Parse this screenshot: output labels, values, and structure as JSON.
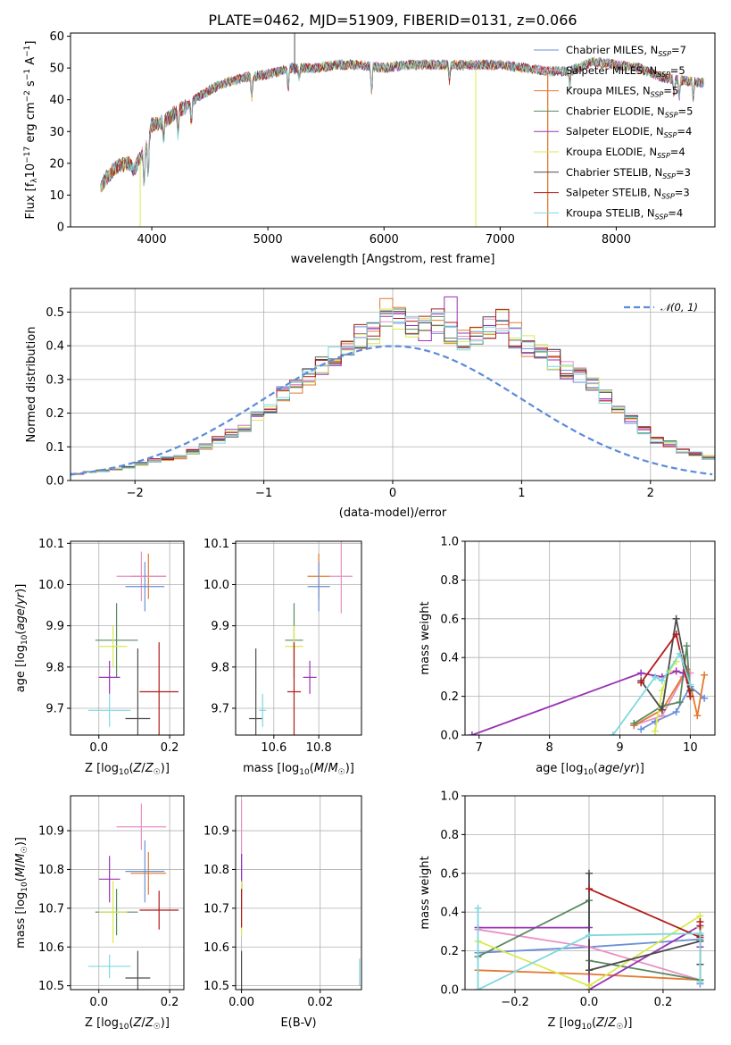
{
  "chart_data": [
    {
      "type": "line",
      "title": "PLATE=0462, MJD=51909, FIBERID=0131, z=0.066",
      "xlabel": "wavelength [Angstrom, rest frame]",
      "ylabel": "Flux [f_λ10^-17 erg cm^-2 s^-1 A^-1]",
      "xlim": [
        3300,
        8850
      ],
      "ylim": [
        0,
        61
      ],
      "xticks": [
        "4000",
        "5000",
        "6000",
        "7000",
        "8000"
      ],
      "yticks": [
        "0",
        "10",
        "20",
        "30",
        "40",
        "50",
        "60"
      ],
      "legend_position": "top-right",
      "spectrum_envelope": {
        "wavelength": [
          3550,
          3600,
          3700,
          3800,
          3850,
          3900,
          3950,
          4000,
          4100,
          4200,
          4300,
          4400,
          4500,
          4600,
          4800,
          5000,
          5200,
          5400,
          5600,
          5800,
          6000,
          6200,
          6400,
          6600,
          6800,
          7000,
          7200,
          7400,
          7600,
          7800,
          8000,
          8200,
          8400,
          8600,
          8800
        ],
        "flux": [
          12,
          15,
          19,
          20,
          18,
          22,
          25,
          32,
          33,
          36,
          38,
          41,
          43,
          45,
          47,
          48,
          50,
          50,
          51,
          51,
          50,
          51,
          51,
          51,
          51,
          51,
          50,
          49,
          49,
          52,
          51,
          50,
          47,
          46,
          45
        ]
      },
      "series": [
        {
          "name": "Chabrier MILES, N_SSP=7",
          "color": "#6b8fd6"
        },
        {
          "name": "Salpeter MILES, N_SSP=5",
          "color": "#e98fc5"
        },
        {
          "name": "Kroupa MILES, N_SSP=5",
          "color": "#e3792f"
        },
        {
          "name": "Chabrier ELODIE, N_SSP=5",
          "color": "#5a8a60"
        },
        {
          "name": "Salpeter ELODIE, N_SSP=4",
          "color": "#9932b5"
        },
        {
          "name": "Kroupa ELODIE, N_SSP=4",
          "color": "#d7ea4e"
        },
        {
          "name": "Chabrier STELIB, N_SSP=3",
          "color": "#4d4d4d"
        },
        {
          "name": "Salpeter STELIB, N_SSP=3",
          "color": "#b31b1b"
        },
        {
          "name": "Kroupa STELIB, N_SSP=4",
          "color": "#7fd8df"
        }
      ]
    },
    {
      "type": "bar",
      "xlabel": "(data-model)/error",
      "ylabel": "Normed distribution",
      "xlim": [
        -2.5,
        2.5
      ],
      "ylim": [
        0,
        0.57
      ],
      "xticks": [
        "−2",
        "−1",
        "0",
        "1",
        "2"
      ],
      "yticks": [
        "0.0",
        "0.1",
        "0.2",
        "0.3",
        "0.4",
        "0.5"
      ],
      "legend": "𝒩(0, 1)",
      "legend_position": "top-right",
      "bin_width": 0.1,
      "bin_start": -2.5,
      "histogram_base": [
        0.02,
        0.025,
        0.03,
        0.035,
        0.04,
        0.05,
        0.06,
        0.065,
        0.07,
        0.085,
        0.1,
        0.12,
        0.14,
        0.16,
        0.19,
        0.22,
        0.26,
        0.28,
        0.31,
        0.34,
        0.37,
        0.41,
        0.43,
        0.44,
        0.47,
        0.48,
        0.45,
        0.45,
        0.47,
        0.44,
        0.42,
        0.44,
        0.46,
        0.47,
        0.43,
        0.4,
        0.38,
        0.36,
        0.33,
        0.31,
        0.28,
        0.25,
        0.21,
        0.18,
        0.15,
        0.12,
        0.11,
        0.09,
        0.08,
        0.07,
        0.06,
        0.055,
        0.05,
        0.045,
        0.04,
        0.035,
        0.03,
        0.03,
        0.025,
        0.02,
        0.02,
        0.02
      ]
    },
    {
      "type": "scatter",
      "xlabel": "Z [log10(Z/Z☉)]",
      "ylabel": "age  [log10(age/yr)]",
      "xlim": [
        -0.08,
        0.24
      ],
      "ylim": [
        9.635,
        10.105
      ],
      "xticks": [
        "0.0",
        "0.2"
      ],
      "yticks": [
        "9.7",
        "9.8",
        "9.9",
        "10.0",
        "10.1"
      ],
      "points": [
        {
          "x": 0.14,
          "y": 10.02,
          "xerr": 0.05,
          "yerr": 0.055,
          "color": "#e3792f"
        },
        {
          "x": 0.12,
          "y": 10.02,
          "xerr": 0.07,
          "yerr": 0.06,
          "color": "#e98fc5"
        },
        {
          "x": 0.13,
          "y": 9.995,
          "xerr": 0.055,
          "yerr": 0.06,
          "color": "#6b8fd6"
        },
        {
          "x": 0.05,
          "y": 9.865,
          "xerr": 0.06,
          "yerr": 0.09,
          "color": "#5a8a60"
        },
        {
          "x": 0.04,
          "y": 9.85,
          "xerr": 0.04,
          "yerr": 0.05,
          "color": "#d7ea4e"
        },
        {
          "x": 0.03,
          "y": 9.775,
          "xerr": 0.03,
          "yerr": 0.04,
          "color": "#9932b5"
        },
        {
          "x": 0.17,
          "y": 9.74,
          "xerr": 0.055,
          "yerr": 0.12,
          "color": "#b31b1b"
        },
        {
          "x": 0.11,
          "y": 9.675,
          "xerr": 0.035,
          "yerr": 0.17,
          "color": "#4d4d4d"
        },
        {
          "x": 0.03,
          "y": 9.695,
          "xerr": 0.06,
          "yerr": 0.04,
          "color": "#7fd8df"
        }
      ]
    },
    {
      "type": "scatter",
      "xlabel": "mass [log10(M/M☉)]",
      "ylabel": "",
      "xlim": [
        10.43,
        10.99
      ],
      "ylim": [
        9.635,
        10.105
      ],
      "xticks": [
        "10.6",
        "10.8"
      ],
      "yticks": [
        "9.7",
        "9.8",
        "9.9",
        "10.0",
        "10.1"
      ],
      "points": [
        {
          "x": 10.8,
          "y": 10.02,
          "xerr": 0.05,
          "yerr": 0.055,
          "color": "#e3792f"
        },
        {
          "x": 10.9,
          "y": 10.02,
          "xerr": 0.05,
          "yerr": 0.09,
          "color": "#e98fc5"
        },
        {
          "x": 10.8,
          "y": 9.995,
          "xerr": 0.05,
          "yerr": 0.06,
          "color": "#6b8fd6"
        },
        {
          "x": 10.69,
          "y": 9.865,
          "xerr": 0.04,
          "yerr": 0.09,
          "color": "#5a8a60"
        },
        {
          "x": 10.69,
          "y": 9.85,
          "xerr": 0.04,
          "yerr": 0.05,
          "color": "#d7ea4e"
        },
        {
          "x": 10.76,
          "y": 9.775,
          "xerr": 0.03,
          "yerr": 0.04,
          "color": "#9932b5"
        },
        {
          "x": 10.69,
          "y": 9.74,
          "xerr": 0.03,
          "yerr": 0.12,
          "color": "#b31b1b"
        },
        {
          "x": 10.52,
          "y": 9.675,
          "xerr": 0.03,
          "yerr": 0.17,
          "color": "#4d4d4d"
        },
        {
          "x": 10.55,
          "y": 9.695,
          "xerr": 0.015,
          "yerr": 0.04,
          "color": "#7fd8df"
        }
      ]
    },
    {
      "type": "line",
      "xlabel": "age  [log10(age/yr)]",
      "ylabel": "mass weight",
      "xlim": [
        6.8,
        10.35
      ],
      "ylim": [
        0,
        1.0
      ],
      "xticks": [
        "7",
        "8",
        "9",
        "10"
      ],
      "yticks": [
        "0.0",
        "0.2",
        "0.4",
        "0.6",
        "0.8",
        "1.0"
      ],
      "series": [
        {
          "color": "#6b8fd6",
          "x": [
            9.3,
            9.5,
            9.8,
            10.0,
            10.2
          ],
          "y": [
            0.03,
            0.07,
            0.12,
            0.25,
            0.19
          ]
        },
        {
          "color": "#e98fc5",
          "x": [
            9.2,
            9.6,
            9.9,
            10.0
          ],
          "y": [
            0.05,
            0.1,
            0.3,
            0.32
          ]
        },
        {
          "color": "#e3792f",
          "x": [
            9.2,
            9.6,
            9.95,
            10.1,
            10.2
          ],
          "y": [
            0.05,
            0.13,
            0.34,
            0.1,
            0.31
          ]
        },
        {
          "color": "#5a8a60",
          "x": [
            9.2,
            9.6,
            9.85,
            9.95,
            10.0
          ],
          "y": [
            0.06,
            0.15,
            0.17,
            0.46,
            0.2
          ]
        },
        {
          "color": "#9932b5",
          "x": [
            6.9,
            9.3,
            9.6,
            9.8,
            9.9
          ],
          "y": [
            0.0,
            0.32,
            0.3,
            0.33,
            0.32
          ]
        },
        {
          "color": "#d7ea4e",
          "x": [
            9.5,
            9.6,
            9.7,
            9.8
          ],
          "y": [
            0.02,
            0.23,
            0.33,
            0.38
          ]
        },
        {
          "color": "#4d4d4d",
          "x": [
            9.3,
            9.6,
            9.8,
            10.0
          ],
          "y": [
            0.28,
            0.13,
            0.6,
            0.23
          ]
        },
        {
          "color": "#b31b1b",
          "x": [
            9.3,
            9.8,
            10.0
          ],
          "y": [
            0.27,
            0.52,
            0.2
          ]
        },
        {
          "color": "#7fd8df",
          "x": [
            8.9,
            9.5,
            9.6,
            9.85,
            10.0
          ],
          "y": [
            0.0,
            0.3,
            0.28,
            0.42,
            0.26
          ]
        }
      ]
    },
    {
      "type": "scatter",
      "xlabel": "Z [log10(Z/Z☉)]",
      "ylabel": "mass [log10(M/M☉)]",
      "xlim": [
        -0.08,
        0.24
      ],
      "ylim": [
        10.49,
        10.99
      ],
      "xticks": [
        "0.0",
        "0.2"
      ],
      "yticks": [
        "10.5",
        "10.6",
        "10.7",
        "10.8",
        "10.9"
      ],
      "points": [
        {
          "x": 0.12,
          "y": 10.91,
          "xerr": 0.07,
          "yerr": 0.06,
          "color": "#e98fc5"
        },
        {
          "x": 0.14,
          "y": 10.79,
          "xerr": 0.05,
          "yerr": 0.055,
          "color": "#e3792f"
        },
        {
          "x": 0.13,
          "y": 10.795,
          "xerr": 0.055,
          "yerr": 0.08,
          "color": "#6b8fd6"
        },
        {
          "x": 0.03,
          "y": 10.775,
          "xerr": 0.03,
          "yerr": 0.06,
          "color": "#9932b5"
        },
        {
          "x": 0.05,
          "y": 10.69,
          "xerr": 0.06,
          "yerr": 0.06,
          "color": "#5a8a60"
        },
        {
          "x": 0.04,
          "y": 10.69,
          "xerr": 0.04,
          "yerr": 0.08,
          "color": "#d7ea4e"
        },
        {
          "x": 0.17,
          "y": 10.695,
          "xerr": 0.055,
          "yerr": 0.05,
          "color": "#b31b1b"
        },
        {
          "x": 0.11,
          "y": 10.52,
          "xerr": 0.035,
          "yerr": 0.07,
          "color": "#4d4d4d"
        },
        {
          "x": 0.03,
          "y": 10.55,
          "xerr": 0.06,
          "yerr": 0.03,
          "color": "#7fd8df"
        }
      ]
    },
    {
      "type": "scatter",
      "xlabel": "E(B-V)",
      "ylabel": "",
      "xlim": [
        -0.0015,
        0.0305
      ],
      "ylim": [
        10.49,
        10.99
      ],
      "xticks": [
        "0.00",
        "0.02"
      ],
      "yticks": [
        "10.5",
        "10.6",
        "10.7",
        "10.8",
        "10.9"
      ],
      "points": [
        {
          "x": 0.0,
          "y": 10.91,
          "yerr": 0.07,
          "color": "#e98fc5"
        },
        {
          "x": 0.0,
          "y": 10.79,
          "yerr": 0.05,
          "color": "#6b8fd6"
        },
        {
          "x": 0.0,
          "y": 10.77,
          "yerr": 0.07,
          "color": "#9932b5"
        },
        {
          "x": 0.0,
          "y": 10.7,
          "yerr": 0.07,
          "color": "#d7ea4e"
        },
        {
          "x": 0.0,
          "y": 10.7,
          "yerr": 0.05,
          "color": "#b31b1b"
        },
        {
          "x": 0.0,
          "y": 10.52,
          "yerr": 0.07,
          "color": "#4d4d4d"
        },
        {
          "x": 0.03,
          "y": 10.535,
          "yerr": 0.035,
          "color": "#7fd8df"
        }
      ]
    },
    {
      "type": "line",
      "xlabel": "Z [log10(Z/Z☉)]",
      "ylabel": "mass weight",
      "xlim": [
        -0.335,
        0.34
      ],
      "ylim": [
        0,
        1.0
      ],
      "xticks": [
        "−0.2",
        "0.0",
        "0.2"
      ],
      "yticks": [
        "0.0",
        "0.2",
        "0.4",
        "0.6",
        "0.8",
        "1.0"
      ],
      "series": [
        {
          "color": "#6b8fd6",
          "x": [
            -0.3,
            0.0,
            0.3,
            0.3
          ],
          "y": [
            0.19,
            0.22,
            0.26,
            0.03
          ]
        },
        {
          "color": "#e98fc5",
          "x": [
            -0.3,
            0.0,
            0.3,
            0.3
          ],
          "y": [
            0.31,
            0.22,
            0.05,
            0.32
          ]
        },
        {
          "color": "#e3792f",
          "x": [
            -0.3,
            0.0,
            0.3
          ],
          "y": [
            0.1,
            0.08,
            0.05
          ]
        },
        {
          "color": "#5a8a60",
          "x": [
            -0.3,
            0.0,
            0.0,
            0.3,
            0.3
          ],
          "y": [
            0.17,
            0.46,
            0.15,
            0.05,
            0.28
          ]
        },
        {
          "color": "#9932b5",
          "x": [
            -0.3,
            0.0,
            0.0,
            0.3,
            0.3
          ],
          "y": [
            0.32,
            0.32,
            0.0,
            0.33,
            0.22
          ]
        },
        {
          "color": "#d7ea4e",
          "x": [
            -0.3,
            0.0,
            0.3,
            0.3
          ],
          "y": [
            0.25,
            0.02,
            0.38,
            0.32
          ]
        },
        {
          "color": "#4d4d4d",
          "x": [
            0.0,
            0.0,
            0.3,
            0.3
          ],
          "y": [
            0.6,
            0.1,
            0.25,
            0.13
          ]
        },
        {
          "color": "#b31b1b",
          "x": [
            0.0,
            0.3,
            0.3
          ],
          "y": [
            0.52,
            0.27,
            0.35
          ]
        },
        {
          "color": "#7fd8df",
          "x": [
            -0.3,
            -0.3,
            0.0,
            0.3,
            0.3
          ],
          "y": [
            0.42,
            0.0,
            0.28,
            0.29,
            0.04
          ]
        }
      ]
    }
  ]
}
